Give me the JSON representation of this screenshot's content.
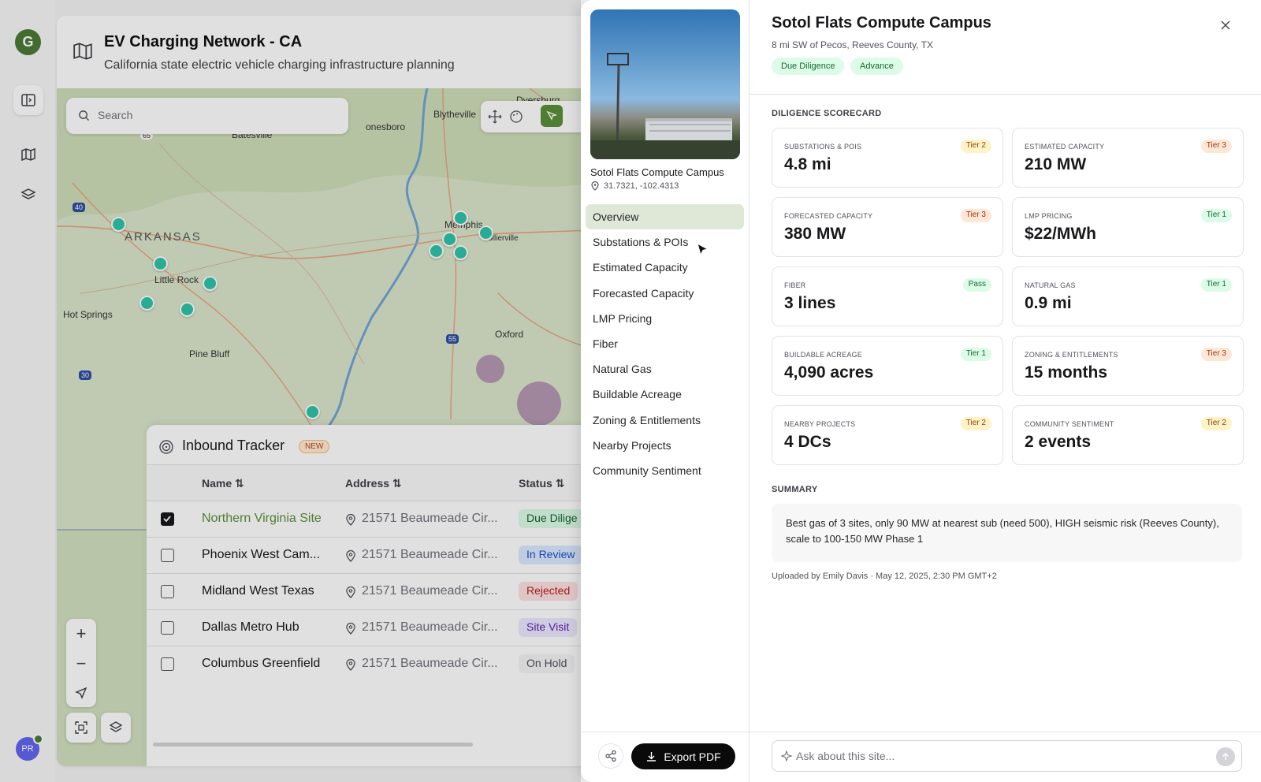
{
  "rail": {
    "avatar_initials": "PR",
    "logo_letter": "G"
  },
  "header": {
    "title": "EV Charging Network - CA",
    "subtitle": "California state electric vehicle charging infrastructure planning"
  },
  "map": {
    "search_placeholder": "Search",
    "places": [
      "Dyersburg",
      "Blytheville",
      "Batesville",
      "onesboro",
      "ARKANSAS",
      "Little Rock",
      "Hot Springs",
      "Pine Bluff",
      "Memphis",
      "Collierville",
      "Oxford"
    ],
    "highways": [
      "65",
      "40",
      "30",
      "55"
    ]
  },
  "tracker": {
    "title": "Inbound Tracker",
    "badge": "NEW",
    "columns": {
      "name": "Name",
      "address": "Address",
      "status": "Status"
    },
    "rows": [
      {
        "name": "Northern Virginia Site",
        "address": "21571 Beaumeade Cir...",
        "status": "Due Dilige",
        "checked": true
      },
      {
        "name": "Phoenix West Cam...",
        "address": "21571 Beaumeade Cir...",
        "status": "In Review",
        "checked": false
      },
      {
        "name": "Midland West Texas",
        "address": "21571 Beaumeade Cir...",
        "status": "Rejected",
        "checked": false
      },
      {
        "name": "Dallas Metro Hub",
        "address": "21571 Beaumeade Cir...",
        "status": "Site Visit",
        "checked": false
      },
      {
        "name": "Columbus Greenfield",
        "address": "21571 Beaumeade Cir...",
        "status": "On Hold",
        "checked": false
      }
    ]
  },
  "site_nav": {
    "site_name": "Sotol Flats Compute Campus",
    "coords": "31.7321, -102.4313",
    "items": [
      "Overview",
      "Substations & POIs",
      "Estimated Capacity",
      "Forecasted Capacity",
      "LMP Pricing",
      "Fiber",
      "Natural Gas",
      "Buildable Acreage",
      "Zoning & Entitlements",
      "Nearby Projects",
      "Community Sentiment"
    ],
    "export_label": "Export PDF"
  },
  "detail": {
    "title": "Sotol Flats Compute Campus",
    "location": "8 mi SW of Pecos, Reeves County, TX",
    "tags": [
      "Due Diligence",
      "Advance"
    ],
    "scorecard_label": "DILIGENCE SCORECARD",
    "cards": [
      {
        "label": "SUBSTATIONS & POIS",
        "value": "4.8 mi",
        "tier": "Tier 2"
      },
      {
        "label": "ESTIMATED CAPACITY",
        "value": "210 MW",
        "tier": "Tier 3"
      },
      {
        "label": "FORECASTED CAPACITY",
        "value": "380 MW",
        "tier": "Tier 3"
      },
      {
        "label": "LMP PRICING",
        "value": "$22/MWh",
        "tier": "Tier 1"
      },
      {
        "label": "FIBER",
        "value": "3 lines",
        "tier": "Pass"
      },
      {
        "label": "NATURAL GAS",
        "value": "0.9 mi",
        "tier": "Tier 1"
      },
      {
        "label": "BUILDABLE ACREAGE",
        "value": "4,090 acres",
        "tier": "Tier 1"
      },
      {
        "label": "ZONING & ENTITLEMENTS",
        "value": "15 months",
        "tier": "Tier 3"
      },
      {
        "label": "NEARBY PROJECTS",
        "value": "4 DCs",
        "tier": "Tier 2"
      },
      {
        "label": "COMMUNITY SENTIMENT",
        "value": "2 events",
        "tier": "Tier 2"
      }
    ],
    "summary_label": "SUMMARY",
    "summary": "Best gas of 3 sites, only 90 MW at nearest sub (need 500), HIGH seismic risk (Reeves County), scale to 100-150 MW Phase 1",
    "uploaded": "Uploaded by Emily Davis · May 12, 2025, 2:30 PM GMT+2",
    "ask_placeholder": "Ask about this site..."
  },
  "colors": {
    "accent_green": "#5a8f3a",
    "marker_teal": "#2ec4a8",
    "nav_active": "#dfe8d6"
  }
}
